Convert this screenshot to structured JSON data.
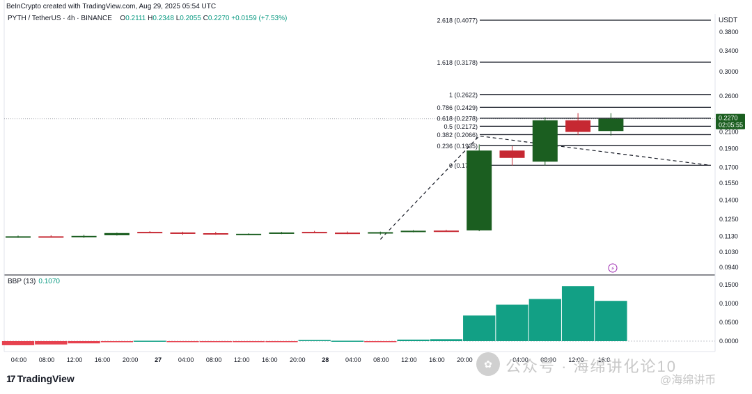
{
  "header": {
    "credit": "BeInCrypto created with TradingView.com, Aug 29, 2025 05:54 UTC",
    "symbol": "PYTH / TetherUS · 4h · BINANCE",
    "open_label": "O",
    "open": "0.2111",
    "high_label": "H",
    "high": "0.2348",
    "low_label": "L",
    "low": "0.2055",
    "close_label": "C",
    "close": "0.2270",
    "change": "+0.0159 (+7.53%)"
  },
  "indicator": {
    "name": "BBP (13)",
    "value": "0.1070"
  },
  "price_axis": {
    "unit": "USDT",
    "ticks": [
      "0.3800",
      "0.3400",
      "0.3000",
      "0.2600",
      "0.2300",
      "0.2100",
      "0.1900",
      "0.1700",
      "0.1550",
      "0.1400",
      "0.1250",
      "0.1130",
      "0.1030",
      "0.0940"
    ],
    "last_price": "0.2270",
    "countdown": "02:05:55"
  },
  "bbp_axis": {
    "ticks": [
      "0.1500",
      "0.1000",
      "0.0500",
      "0.0000"
    ]
  },
  "time_axis": {
    "labels": [
      "04:00",
      "08:00",
      "12:00",
      "16:00",
      "20:00",
      "27",
      "04:00",
      "08:00",
      "12:00",
      "16:00",
      "20:00",
      "28",
      "04:00",
      "08:00",
      "12:00",
      "16:00",
      "20:00",
      "29",
      "04:00",
      "08:00",
      "12:00",
      "16:0"
    ]
  },
  "branding": {
    "logo_text": "TradingView",
    "logo_mark": "17"
  },
  "watermark": {
    "text": "公众号 · 海绵讲化论10",
    "text2": "@海绵讲币",
    "icon": "wechat-icon"
  },
  "colors": {
    "up": "#1b5e20",
    "down": "#c62832",
    "bbp_pos": "#12a085",
    "bbp_neg": "#e6424f",
    "accent": "#089981"
  },
  "chart_data": [
    {
      "type": "candlestick",
      "title": "PYTH / TetherUS · 4h · BINANCE",
      "ylabel": "USDT",
      "ylim": [
        0.088,
        0.4
      ],
      "candles": [
        {
          "o": 0.1125,
          "h": 0.1135,
          "l": 0.112,
          "c": 0.113
        },
        {
          "o": 0.113,
          "h": 0.1137,
          "l": 0.1123,
          "c": 0.1128
        },
        {
          "o": 0.1123,
          "h": 0.114,
          "l": 0.112,
          "c": 0.1133
        },
        {
          "o": 0.1137,
          "h": 0.1155,
          "l": 0.1135,
          "c": 0.1152
        },
        {
          "o": 0.116,
          "h": 0.1165,
          "l": 0.1156,
          "c": 0.1158
        },
        {
          "o": 0.1156,
          "h": 0.1161,
          "l": 0.114,
          "c": 0.1153
        },
        {
          "o": 0.1151,
          "h": 0.116,
          "l": 0.114,
          "c": 0.1143
        },
        {
          "o": 0.114,
          "h": 0.115,
          "l": 0.1137,
          "c": 0.1147
        },
        {
          "o": 0.115,
          "h": 0.116,
          "l": 0.1145,
          "c": 0.1156
        },
        {
          "o": 0.116,
          "h": 0.1167,
          "l": 0.1152,
          "c": 0.1157
        },
        {
          "o": 0.1155,
          "h": 0.1163,
          "l": 0.1145,
          "c": 0.115
        },
        {
          "o": 0.115,
          "h": 0.1162,
          "l": 0.114,
          "c": 0.1158
        },
        {
          "o": 0.1162,
          "h": 0.1172,
          "l": 0.1157,
          "c": 0.1168
        },
        {
          "o": 0.1169,
          "h": 0.1174,
          "l": 0.1162,
          "c": 0.1165
        },
        {
          "o": 0.117,
          "h": 0.195,
          "l": 0.1165,
          "c": 0.188
        },
        {
          "o": 0.188,
          "h": 0.193,
          "l": 0.172,
          "c": 0.18
        },
        {
          "o": 0.176,
          "h": 0.229,
          "l": 0.172,
          "c": 0.225
        },
        {
          "o": 0.225,
          "h": 0.2348,
          "l": 0.206,
          "c": 0.21
        },
        {
          "o": 0.2111,
          "h": 0.2348,
          "l": 0.2055,
          "c": 0.227
        }
      ],
      "fib_levels": [
        {
          "ratio": "2.618",
          "price": 0.4077,
          "label": "2.618 (0.4077)"
        },
        {
          "ratio": "1.618",
          "price": 0.3178,
          "label": "1.618 (0.3178)"
        },
        {
          "ratio": "1",
          "price": 0.2622,
          "label": "1 (0.2622)"
        },
        {
          "ratio": "0.786",
          "price": 0.2429,
          "label": "0.786 (0.2429)"
        },
        {
          "ratio": "0.618",
          "price": 0.2278,
          "label": "0.618 (0.2278)"
        },
        {
          "ratio": "0.5",
          "price": 0.2172,
          "label": "0.5 (0.2172)"
        },
        {
          "ratio": "0.382",
          "price": 0.2066,
          "label": "0.382 (0.2066)"
        },
        {
          "ratio": "0.236",
          "price": 0.1935,
          "label": "0.236 (0.1935)"
        },
        {
          "ratio": "0",
          "price": 0.1723,
          "label": "0 (0.1723)"
        }
      ],
      "trend_line": [
        {
          "bar": 11.0,
          "price": 0.111
        },
        {
          "bar": 14.0,
          "price": 0.205
        },
        {
          "bar": 21.0,
          "price": 0.1723
        }
      ]
    },
    {
      "type": "bar",
      "title": "BBP (13)",
      "ylim": [
        -0.015,
        0.17
      ],
      "values": [
        -0.011,
        -0.009,
        -0.006,
        -0.003,
        0.001,
        -0.002,
        -0.001,
        -0.002,
        -0.001,
        0.003,
        0.001,
        -0.002,
        0.004,
        0.005,
        0.068,
        0.097,
        0.112,
        0.146,
        0.107
      ]
    }
  ]
}
